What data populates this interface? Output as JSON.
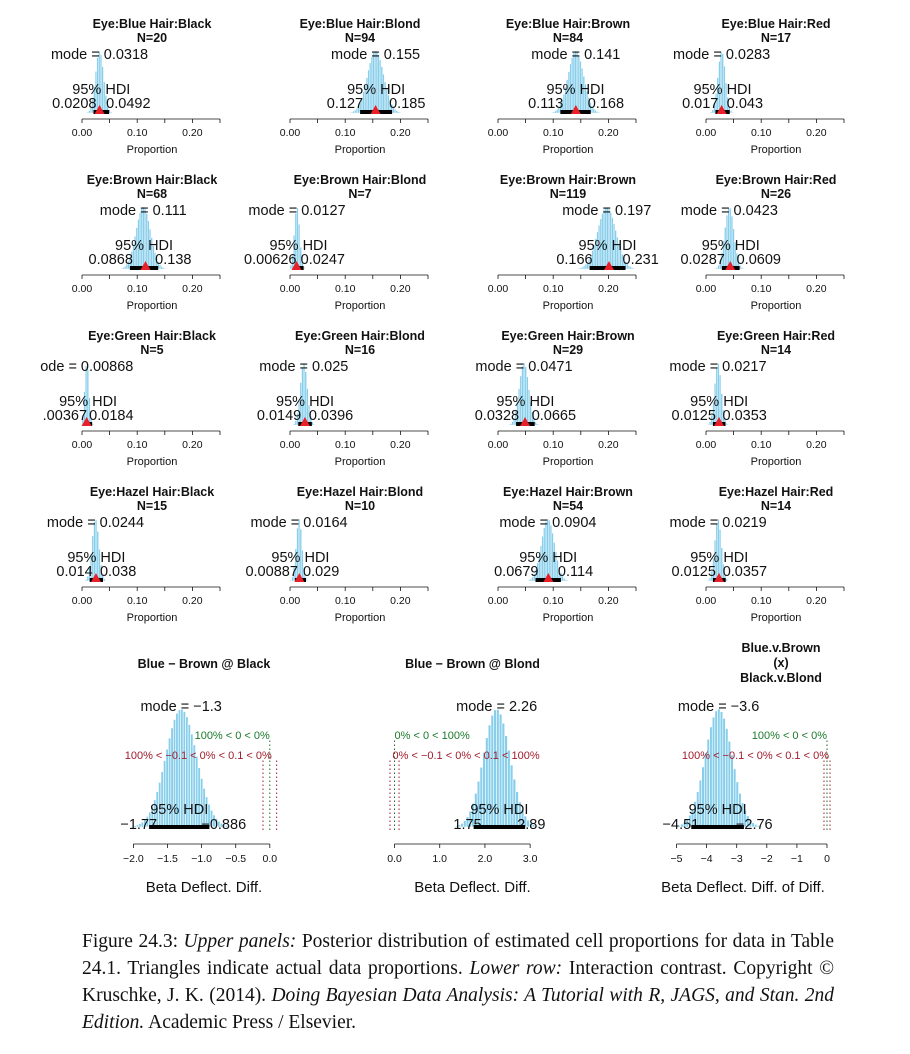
{
  "cell_panels": [
    {
      "title": "Eye:Blue  Hair:Black",
      "n": "N=20",
      "mode": 0.0318,
      "mode_label": "mode = 0.0318",
      "hdi_label": "95% HDI",
      "hdi": [
        0.0208,
        0.0492
      ],
      "hdi_low_label": "0.0208",
      "hdi_high_label": "0.0492",
      "observed": 0.0318,
      "xlabel": "Proportion",
      "ticks": [
        "0.00",
        "0.10",
        "0.20"
      ],
      "xlim": [
        0,
        0.25
      ]
    },
    {
      "title": "Eye:Blue  Hair:Blond",
      "n": "N=94",
      "mode": 0.155,
      "mode_label": "mode = 0.155",
      "hdi_label": "95% HDI",
      "hdi": [
        0.127,
        0.185
      ],
      "hdi_low_label": "0.127",
      "hdi_high_label": "0.185",
      "observed": 0.155,
      "xlabel": "Proportion",
      "ticks": [
        "0.00",
        "0.10",
        "0.20"
      ],
      "xlim": [
        0,
        0.25
      ]
    },
    {
      "title": "Eye:Blue  Hair:Brown",
      "n": "N=84",
      "mode": 0.141,
      "mode_label": "mode = 0.141",
      "hdi_label": "95% HDI",
      "hdi": [
        0.113,
        0.168
      ],
      "hdi_low_label": "0.113",
      "hdi_high_label": "0.168",
      "observed": 0.141,
      "xlabel": "Proportion",
      "ticks": [
        "0.00",
        "0.10",
        "0.20"
      ],
      "xlim": [
        0,
        0.25
      ]
    },
    {
      "title": "Eye:Blue  Hair:Red",
      "n": "N=17",
      "mode": 0.0283,
      "mode_label": "mode = 0.0283",
      "hdi_label": "95% HDI",
      "hdi": [
        0.017,
        0.043
      ],
      "hdi_low_label": "0.017",
      "hdi_high_label": "0.043",
      "observed": 0.0283,
      "xlabel": "Proportion",
      "ticks": [
        "0.00",
        "0.10",
        "0.20"
      ],
      "xlim": [
        0,
        0.25
      ]
    },
    {
      "title": "Eye:Brown  Hair:Black",
      "n": "N=68",
      "mode": 0.111,
      "mode_label": "mode = 0.111",
      "hdi_label": "95% HDI",
      "hdi": [
        0.0868,
        0.138
      ],
      "hdi_low_label": "0.0868",
      "hdi_high_label": "0.138",
      "observed": 0.115,
      "xlabel": "Proportion",
      "ticks": [
        "0.00",
        "0.10",
        "0.20"
      ],
      "xlim": [
        0,
        0.25
      ]
    },
    {
      "title": "Eye:Brown  Hair:Blond",
      "n": "N=7",
      "mode": 0.0127,
      "mode_label": "mode = 0.0127",
      "hdi_label": "95% HDI",
      "hdi": [
        0.00626,
        0.0247
      ],
      "hdi_low_label": "0.00626",
      "hdi_high_label": "0.0247",
      "observed": 0.0118,
      "xlabel": "Proportion",
      "ticks": [
        "0.00",
        "0.10",
        "0.20"
      ],
      "xlim": [
        0,
        0.25
      ]
    },
    {
      "title": "Eye:Brown  Hair:Brown",
      "n": "N=119",
      "mode": 0.197,
      "mode_label": "mode = 0.197",
      "hdi_label": "95% HDI",
      "hdi": [
        0.166,
        0.231
      ],
      "hdi_low_label": "0.166",
      "hdi_high_label": "0.231",
      "observed": 0.201,
      "xlabel": "Proportion",
      "ticks": [
        "0.00",
        "0.10",
        "0.20"
      ],
      "xlim": [
        0,
        0.25
      ]
    },
    {
      "title": "Eye:Brown  Hair:Red",
      "n": "N=26",
      "mode": 0.0423,
      "mode_label": "mode = 0.0423",
      "hdi_label": "95% HDI",
      "hdi": [
        0.0287,
        0.0609
      ],
      "hdi_low_label": "0.0287",
      "hdi_high_label": "0.0609",
      "observed": 0.0439,
      "xlabel": "Proportion",
      "ticks": [
        "0.00",
        "0.10",
        "0.20"
      ],
      "xlim": [
        0,
        0.25
      ]
    },
    {
      "title": "Eye:Green  Hair:Black",
      "n": "N=5",
      "mode": 0.00868,
      "mode_label": "ode = 0.00868",
      "hdi_label": "95% HDI",
      "hdi": [
        0.00367,
        0.0184
      ],
      "hdi_low_label": ".00367",
      "hdi_high_label": "0.0184",
      "observed": 0.0084,
      "xlabel": "Proportion",
      "ticks": [
        "0.00",
        "0.10",
        "0.20"
      ],
      "xlim": [
        0,
        0.25
      ]
    },
    {
      "title": "Eye:Green  Hair:Blond",
      "n": "N=16",
      "mode": 0.025,
      "mode_label": "mode = 0.025",
      "hdi_label": "95% HDI",
      "hdi": [
        0.0149,
        0.0396
      ],
      "hdi_low_label": "0.0149",
      "hdi_high_label": "0.0396",
      "observed": 0.027,
      "xlabel": "Proportion",
      "ticks": [
        "0.00",
        "0.10",
        "0.20"
      ],
      "xlim": [
        0,
        0.25
      ]
    },
    {
      "title": "Eye:Green  Hair:Brown",
      "n": "N=29",
      "mode": 0.0471,
      "mode_label": "mode = 0.0471",
      "hdi_label": "95% HDI",
      "hdi": [
        0.0328,
        0.0665
      ],
      "hdi_low_label": "0.0328",
      "hdi_high_label": "0.0665",
      "observed": 0.049,
      "xlabel": "Proportion",
      "ticks": [
        "0.00",
        "0.10",
        "0.20"
      ],
      "xlim": [
        0,
        0.25
      ]
    },
    {
      "title": "Eye:Green  Hair:Red",
      "n": "N=14",
      "mode": 0.0217,
      "mode_label": "mode = 0.0217",
      "hdi_label": "95% HDI",
      "hdi": [
        0.0125,
        0.0353
      ],
      "hdi_low_label": "0.0125",
      "hdi_high_label": "0.0353",
      "observed": 0.0236,
      "xlabel": "Proportion",
      "ticks": [
        "0.00",
        "0.10",
        "0.20"
      ],
      "xlim": [
        0,
        0.25
      ]
    },
    {
      "title": "Eye:Hazel  Hair:Black",
      "n": "N=15",
      "mode": 0.0244,
      "mode_label": "mode = 0.0244",
      "hdi_label": "95% HDI",
      "hdi": [
        0.014,
        0.038
      ],
      "hdi_low_label": "0.014",
      "hdi_high_label": "0.038",
      "observed": 0.0253,
      "xlabel": "Proportion",
      "ticks": [
        "0.00",
        "0.10",
        "0.20"
      ],
      "xlim": [
        0,
        0.25
      ]
    },
    {
      "title": "Eye:Hazel  Hair:Blond",
      "n": "N=10",
      "mode": 0.0164,
      "mode_label": "mode = 0.0164",
      "hdi_label": "95% HDI",
      "hdi": [
        0.00887,
        0.029
      ],
      "hdi_low_label": "0.00887",
      "hdi_high_label": "0.029",
      "observed": 0.0169,
      "xlabel": "Proportion",
      "ticks": [
        "0.00",
        "0.10",
        "0.20"
      ],
      "xlim": [
        0,
        0.25
      ]
    },
    {
      "title": "Eye:Hazel  Hair:Brown",
      "n": "N=54",
      "mode": 0.0904,
      "mode_label": "mode = 0.0904",
      "hdi_label": "95% HDI",
      "hdi": [
        0.0679,
        0.114
      ],
      "hdi_low_label": "0.0679",
      "hdi_high_label": "0.114",
      "observed": 0.0912,
      "xlabel": "Proportion",
      "ticks": [
        "0.00",
        "0.10",
        "0.20"
      ],
      "xlim": [
        0,
        0.25
      ]
    },
    {
      "title": "Eye:Hazel  Hair:Red",
      "n": "N=14",
      "mode": 0.0219,
      "mode_label": "mode = 0.0219",
      "hdi_label": "95% HDI",
      "hdi": [
        0.0125,
        0.0357
      ],
      "hdi_low_label": "0.0125",
      "hdi_high_label": "0.0357",
      "observed": 0.0236,
      "xlabel": "Proportion",
      "ticks": [
        "0.00",
        "0.10",
        "0.20"
      ],
      "xlim": [
        0,
        0.25
      ]
    }
  ],
  "contrast_panels": [
    {
      "title_lines": [
        "Blue − Brown @ Black"
      ],
      "mode": -1.3,
      "mode_label": "mode = −1.3",
      "hdi_label": "95% HDI",
      "hdi": [
        -1.77,
        -0.886
      ],
      "hdi_low_label": "−1.77",
      "hdi_high_label": "−0.886",
      "comp_label": "100% < 0 < 0%",
      "rope_label": "100% < −0.1 < 0% < 0.1 < 0%",
      "rope": [
        -0.1,
        0.1
      ],
      "xlim": [
        -2.05,
        0.12
      ],
      "ticks": [
        -2.0,
        -1.5,
        -1.0,
        -0.5,
        0.0
      ],
      "tick_labels": [
        "−2.0",
        "−1.5",
        "−1.0",
        "−0.5",
        "0.0"
      ],
      "xlabel": "Beta Deflect. Diff."
    },
    {
      "title_lines": [
        "Blue − Brown @ Blond"
      ],
      "mode": 2.26,
      "mode_label": "mode = 2.26",
      "hdi_label": "95% HDI",
      "hdi": [
        1.75,
        2.89
      ],
      "hdi_low_label": "1.75",
      "hdi_high_label": "2.89",
      "comp_label": "0% < 0 < 100%",
      "rope_label": "0% < −0.1 < 0% < 0.1 < 100%",
      "rope": [
        -0.1,
        0.1
      ],
      "xlim": [
        -0.1,
        3.55
      ],
      "ticks": [
        0.0,
        1.0,
        2.0,
        3.0
      ],
      "tick_labels": [
        "0.0",
        "1.0",
        "2.0",
        "3.0"
      ],
      "xlabel": "Beta Deflect. Diff."
    },
    {
      "title_lines": [
        "Blue.v.Brown",
        "(x)",
        "Black.v.Blond"
      ],
      "mode": -3.6,
      "mode_label": "mode = −3.6",
      "hdi_label": "95% HDI",
      "hdi": [
        -4.51,
        -2.76
      ],
      "hdi_low_label": "−4.51",
      "hdi_high_label": "−2.76",
      "comp_label": "100% < 0 < 0%",
      "rope_label": "100% < −0.1 < 0% < 0.1 < 0%",
      "rope": [
        -0.1,
        0.1
      ],
      "xlim": [
        -5.15,
        0.1
      ],
      "ticks": [
        -5,
        -4,
        -3,
        -2,
        -1,
        0
      ],
      "tick_labels": [
        "−5",
        "−4",
        "−3",
        "−2",
        "−1",
        "0"
      ],
      "xlabel": "Beta Deflect. Diff. of Diff."
    }
  ],
  "caption": {
    "figure_label": "Figure 24.3:",
    "upper_label": "Upper panels:",
    "text1": "Posterior distribution of estimated cell proportions for data in Table 24.1. Triangles indicate actual data proportions.",
    "lower_label": "Lower row:",
    "text2": "Interaction contrast.    Copyright © Kruschke, J. K. (2014).",
    "book_title": "Doing Bayesian Data Analysis: A Tutorial with R, JAGS, and Stan. 2nd Edition.",
    "publisher": "Academic Press / Elsevier."
  },
  "colors": {
    "histogram": "#87ceeb",
    "histogram_edge": "#ffffff",
    "hdi_bar": "#000000",
    "triangle": "#e8202a",
    "comp_text": "#1a7a2a",
    "rope_text": "#a01c2c",
    "rope_line": "#a01c2c",
    "zero_line": "#1a6b2a"
  }
}
